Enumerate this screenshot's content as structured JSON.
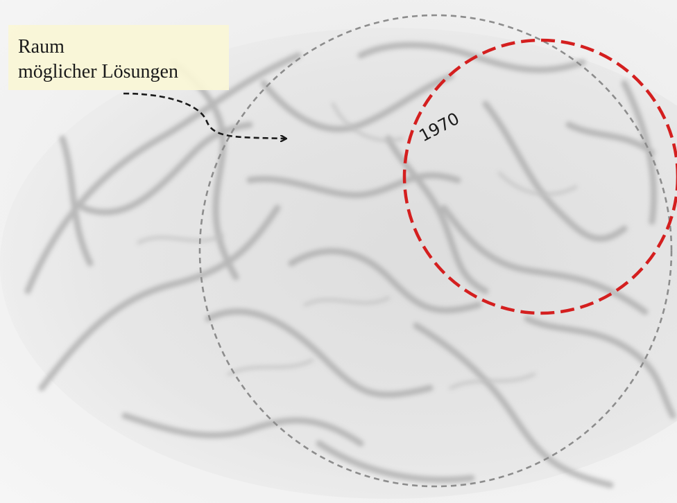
{
  "label": {
    "line1": "Raum",
    "line2": "möglicher Lösungen"
  },
  "circles": {
    "outer": {
      "style": "dashed",
      "color": "#888888"
    },
    "inner": {
      "year": "1970",
      "style": "dashed",
      "color": "#d41f1f"
    }
  },
  "arrow": {
    "color": "#1a1a1a",
    "style": "dashed"
  },
  "background": {
    "description_icon": "brain-icon"
  }
}
